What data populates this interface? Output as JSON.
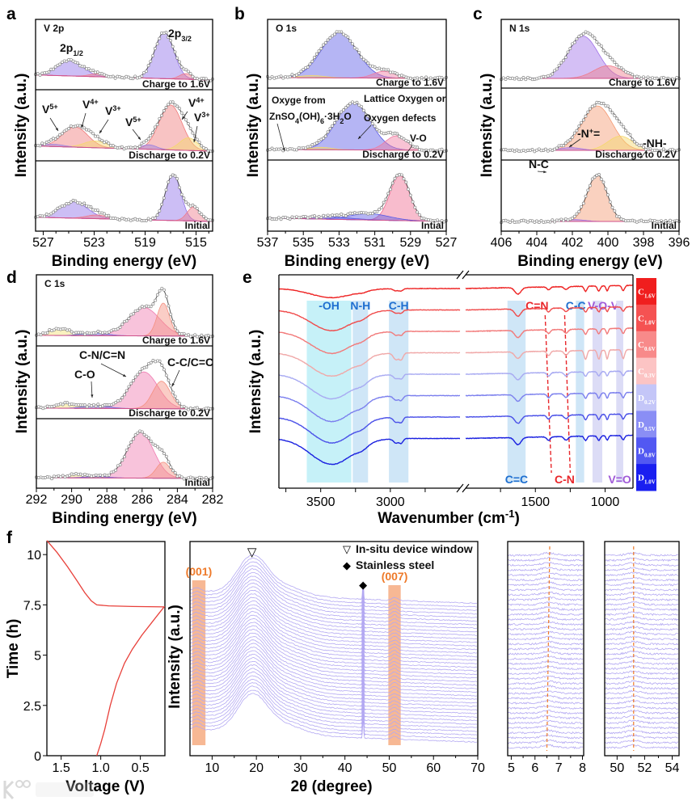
{
  "watermark": "大数跨境",
  "chart_data": [
    {
      "panel": "a",
      "type": "line",
      "title": "V 2p",
      "xlabel": "Binding energy (eV)",
      "ylabel": "Intensity (a.u.)",
      "xlim": [
        513.7,
        527.6
      ],
      "xticks": [
        "527",
        "523",
        "519",
        "515"
      ],
      "spectra": [
        {
          "label": "Charge to 1.6V",
          "bg": [
            0.12,
            0.0
          ],
          "components": [
            {
              "center": 517.5,
              "amp": 1.0,
              "width": 0.75,
              "color": "#8f6fe8"
            },
            {
              "center": 524.9,
              "amp": 0.33,
              "width": 1.0,
              "color": "#8f6fe8"
            },
            {
              "center": 522.8,
              "amp": 0.06,
              "width": 0.6,
              "color": "#f07a8a"
            },
            {
              "center": 515.8,
              "amp": 0.12,
              "width": 0.5,
              "color": "#f07a8a"
            }
          ]
        },
        {
          "label": "Discharge to 0.2V",
          "bg": [
            0.12,
            0.0
          ],
          "components": [
            {
              "center": 517.0,
              "amp": 1.0,
              "width": 0.9,
              "color": "#f07a7a"
            },
            {
              "center": 515.6,
              "amp": 0.28,
              "width": 0.7,
              "color": "#f5d86a"
            },
            {
              "center": 518.7,
              "amp": 0.1,
              "width": 0.6,
              "color": "#9a7fe0"
            },
            {
              "center": 524.5,
              "amp": 0.45,
              "width": 1.0,
              "color": "#f07a7a"
            },
            {
              "center": 522.9,
              "amp": 0.15,
              "width": 0.9,
              "color": "#f5d86a"
            },
            {
              "center": 526.2,
              "amp": 0.05,
              "width": 0.8,
              "color": "#9a7fe0"
            }
          ]
        },
        {
          "label": "Initial",
          "bg": [
            0.1,
            0.0
          ],
          "components": [
            {
              "center": 516.8,
              "amp": 1.0,
              "width": 0.6,
              "color": "#8f6fe8"
            },
            {
              "center": 515.2,
              "amp": 0.3,
              "width": 0.5,
              "color": "#f07a8a"
            },
            {
              "center": 524.6,
              "amp": 0.35,
              "width": 1.1,
              "color": "#8f6fe8"
            },
            {
              "center": 522.8,
              "amp": 0.08,
              "width": 0.8,
              "color": "#f07a8a"
            }
          ]
        }
      ],
      "annotations": [
        {
          "t": "2p",
          "sub": "1/2"
        },
        {
          "t": "2p",
          "sub": "3/2"
        },
        {
          "t": "V",
          "sup": "5+"
        },
        {
          "t": "V",
          "sup": "4+"
        },
        {
          "t": "V",
          "sup": "3+"
        },
        {
          "t": "V",
          "sup": "5+"
        },
        {
          "t": "V",
          "sup": "4+"
        },
        {
          "t": "V",
          "sup": "3+"
        }
      ]
    },
    {
      "panel": "b",
      "type": "line",
      "title": "O 1s",
      "xlabel": "Binding energy (eV)",
      "ylabel": "Intensity (a.u.)",
      "xlim": [
        527,
        537
      ],
      "xticks": [
        "537",
        "535",
        "533",
        "531",
        "529",
        "527"
      ],
      "spectra": [
        {
          "label": "Charge to 1.6V",
          "bg": [
            0.02,
            0.0
          ],
          "components": [
            {
              "center": 533.0,
              "amp": 1.0,
              "width": 1.0,
              "color": "#5a5ae6"
            },
            {
              "center": 530.5,
              "amp": 0.15,
              "width": 0.6,
              "color": "#f07aa0"
            },
            {
              "center": 534.5,
              "amp": 0.05,
              "width": 0.7,
              "color": "#f5d86a"
            }
          ]
        },
        {
          "label": "Discharge to 0.2V",
          "bg": [
            0.02,
            0.0
          ],
          "components": [
            {
              "center": 532.2,
              "amp": 1.0,
              "width": 0.95,
              "color": "#5a5ae6"
            },
            {
              "center": 529.8,
              "amp": 0.3,
              "width": 0.6,
              "color": "#f07aa0"
            },
            {
              "center": 534.0,
              "amp": 0.05,
              "width": 0.6,
              "color": "#f5d86a"
            }
          ]
        },
        {
          "label": "Intial",
          "bg": [
            0.08,
            0.0
          ],
          "components": [
            {
              "center": 529.6,
              "amp": 1.0,
              "width": 0.55,
              "color": "#f06a90"
            },
            {
              "center": 531.3,
              "amp": 0.14,
              "width": 1.1,
              "color": "#5a5ae6"
            },
            {
              "center": 533.5,
              "amp": 0.05,
              "width": 1.2,
              "color": "#5a5ae6"
            }
          ]
        }
      ],
      "annotations": [
        {
          "t": "Oxyge from"
        },
        {
          "t": "ZnSO",
          "s1": "4",
          "t2": "(OH)",
          "s2": "6",
          "t3": "·3H",
          "s3": "2",
          "t4": "O"
        },
        {
          "t": "Lattice Oxygen or"
        },
        {
          "t": "Oxygen defects"
        },
        {
          "t": "V-O"
        }
      ]
    },
    {
      "panel": "c",
      "type": "line",
      "title": "N 1s",
      "xlabel": "Binding energy (eV)",
      "ylabel": "Intensity (a.u.)",
      "xlim": [
        396,
        406
      ],
      "xticks": [
        "406",
        "404",
        "402",
        "400",
        "398",
        "396"
      ],
      "spectra": [
        {
          "label": "Charge to 1.6V",
          "bg": [
            0.0,
            0.0
          ],
          "components": [
            {
              "center": 401.4,
              "amp": 1.0,
              "width": 0.85,
              "color": "#a070e8"
            },
            {
              "center": 400.0,
              "amp": 0.3,
              "width": 0.8,
              "color": "#f07a8a"
            }
          ]
        },
        {
          "label": "Discharge to 0.2V",
          "bg": [
            0.0,
            0.0
          ],
          "components": [
            {
              "center": 400.6,
              "amp": 1.0,
              "width": 0.85,
              "color": "#f59870"
            },
            {
              "center": 399.3,
              "amp": 0.32,
              "width": 0.7,
              "color": "#f5d86a"
            },
            {
              "center": 402.1,
              "amp": 0.06,
              "width": 0.6,
              "color": "#a070e8"
            }
          ]
        },
        {
          "label": "Initial",
          "bg": [
            0.0,
            0.0
          ],
          "components": [
            {
              "center": 400.6,
              "amp": 1.0,
              "width": 0.55,
              "color": "#f59870"
            },
            {
              "center": 401.9,
              "amp": 0.04,
              "width": 0.6,
              "color": "#a070e8"
            }
          ]
        }
      ],
      "annotations": [
        {
          "t": "N-C"
        },
        {
          "t": "-N",
          "sup": "+",
          "t2": "="
        },
        {
          "t": "-NH-"
        }
      ]
    },
    {
      "panel": "d",
      "type": "line",
      "title": "C 1s",
      "xlabel": "Binding energy (eV)",
      "ylabel": "Intensity (a.u.)",
      "xlim": [
        282,
        292
      ],
      "xticks": [
        "292",
        "290",
        "288",
        "286",
        "284",
        "282"
      ],
      "spectra": [
        {
          "label": "Charge to 1.6V",
          "bg": [
            0.02,
            0.0
          ],
          "components": [
            {
              "center": 285.9,
              "amp": 0.62,
              "width": 0.9,
              "color": "#f07ab0"
            },
            {
              "center": 284.8,
              "amp": 0.72,
              "width": 0.35,
              "color": "#f59080"
            },
            {
              "center": 290.7,
              "amp": 0.15,
              "width": 0.6,
              "color": "#f5e070"
            },
            {
              "center": 288.7,
              "amp": 0.06,
              "width": 0.7,
              "color": "#6a6ae8"
            }
          ]
        },
        {
          "label": "Discharge to 0.2V",
          "bg": [
            0.02,
            0.0
          ],
          "components": [
            {
              "center": 285.9,
              "amp": 0.8,
              "width": 0.8,
              "color": "#f07ab0"
            },
            {
              "center": 284.9,
              "amp": 0.6,
              "width": 0.5,
              "color": "#f59080"
            },
            {
              "center": 290.4,
              "amp": 0.1,
              "width": 0.6,
              "color": "#f5e070"
            },
            {
              "center": 288.6,
              "amp": 0.06,
              "width": 0.7,
              "color": "#6a6ae8"
            }
          ]
        },
        {
          "label": "Initial",
          "bg": [
            0.02,
            0.0
          ],
          "components": [
            {
              "center": 286.1,
              "amp": 1.0,
              "width": 0.75,
              "color": "#f07ab0"
            },
            {
              "center": 284.8,
              "amp": 0.35,
              "width": 0.4,
              "color": "#f59080"
            },
            {
              "center": 289.7,
              "amp": 0.07,
              "width": 0.6,
              "color": "#f5e070"
            },
            {
              "center": 288.6,
              "amp": 0.03,
              "width": 0.7,
              "color": "#6a6ae8"
            }
          ]
        }
      ],
      "annotations": [
        {
          "t": "C-N/C=N"
        },
        {
          "t": "C-O"
        },
        {
          "t": "C-C/C=C"
        }
      ]
    },
    {
      "panel": "e",
      "type": "line",
      "xlabel": "Wavenumber (cm",
      "xlabel_sup": "-1",
      "xlabel_end": ")",
      "ylabel": "Intensity (a.u.)",
      "xlim_left": [
        2500,
        3800
      ],
      "xlim_right": [
        800,
        2000
      ],
      "xticks": [
        "3500",
        "3000",
        "1500",
        "1000"
      ],
      "bands": [
        {
          "label": "-OH",
          "range": [
            3280,
            3600
          ],
          "color": "#c6f1f8",
          "text_color": "#1f6fd0"
        },
        {
          "label": "N-H",
          "range": [
            3160,
            3270
          ],
          "color": "#cfe6f7",
          "text_color": "#1f6fd0"
        },
        {
          "label": "C-H",
          "range": [
            2870,
            3010
          ],
          "color": "#cfe6f7",
          "text_color": "#1f6fd0"
        },
        {
          "label": "C=C",
          "range": [
            1570,
            1700
          ],
          "color": "#cfe6f7",
          "text_color": "#1f6fd0"
        },
        {
          "label": "C-C",
          "range": [
            1150,
            1210
          ],
          "color": "#cfe6f7",
          "text_color": "#1f6fd0"
        },
        {
          "label": "V-O-V",
          "range": [
            1020,
            1090
          ],
          "color": "#dcdcf6",
          "text_color": "#a05ad8"
        },
        {
          "label": "V=O",
          "range": [
            870,
            920
          ],
          "color": "#dcdcf6",
          "text_color": "#a05ad8"
        }
      ],
      "lines": [
        {
          "label": "C=N",
          "from": 1430,
          "to": 1385,
          "color": "#e8262a"
        },
        {
          "label": "C-N",
          "from": 1290,
          "to": 1250,
          "color": "#e8262a"
        }
      ],
      "features": [
        {
          "center": 3420,
          "width": 150,
          "key": "oh"
        },
        {
          "center": 3200,
          "width": 40,
          "key": "nh"
        },
        {
          "center": 2960,
          "width": 18,
          "key": "ch"
        },
        {
          "center": 2922,
          "width": 14,
          "key": "ch"
        },
        {
          "center": 1625,
          "width": 22,
          "key": "cc"
        },
        {
          "center": 1405,
          "width": 12,
          "key": "cn"
        },
        {
          "center": 1280,
          "width": 14,
          "key": "cn"
        },
        {
          "center": 1140,
          "width": 10,
          "key": "vo"
        },
        {
          "center": 1045,
          "width": 10,
          "key": "vo"
        },
        {
          "center": 985,
          "width": 8,
          "key": "vo"
        },
        {
          "center": 870,
          "width": 10,
          "key": "vo"
        }
      ],
      "series": [
        {
          "name": "C",
          "sub": "1.6V",
          "color": "#ee2222",
          "bar": "#f01e1e",
          "oh": 0.35,
          "nh": 0.1,
          "ch": 0.15,
          "cc": 0.45,
          "cn": 0.2,
          "vo": 0.35
        },
        {
          "name": "C",
          "sub": "1.0V",
          "color": "#f04c4c",
          "bar": "#f55252",
          "oh": 0.8,
          "nh": 0.2,
          "ch": 0.2,
          "cc": 0.5,
          "cn": 0.25,
          "vo": 0.3
        },
        {
          "name": "C",
          "sub": "0.6V",
          "color": "#f27a7a",
          "bar": "#f88a8a",
          "oh": 0.85,
          "nh": 0.2,
          "ch": 0.25,
          "cc": 0.5,
          "cn": 0.25,
          "vo": 0.35
        },
        {
          "name": "C",
          "sub": "0.3V",
          "color": "#f0a8a8",
          "bar": "#fcc4c4",
          "oh": 0.9,
          "nh": 0.25,
          "ch": 0.45,
          "cc": 0.45,
          "cn": 0.3,
          "vo": 0.6
        },
        {
          "name": "D",
          "sub": "0.2V",
          "color": "#a8aaf2",
          "bar": "#c4c6f8",
          "oh": 0.95,
          "nh": 0.25,
          "ch": 0.3,
          "cc": 0.45,
          "cn": 0.25,
          "vo": 0.3
        },
        {
          "name": "D",
          "sub": "0.5V",
          "color": "#7c80ee",
          "bar": "#8a8ef5",
          "oh": 1.0,
          "nh": 0.25,
          "ch": 0.3,
          "cc": 0.45,
          "cn": 0.25,
          "vo": 0.35
        },
        {
          "name": "D",
          "sub": "0.8V",
          "color": "#4a50e8",
          "bar": "#5258f2",
          "oh": 1.0,
          "nh": 0.25,
          "ch": 0.35,
          "cc": 0.5,
          "cn": 0.25,
          "vo": 0.35
        },
        {
          "name": "D",
          "sub": "1.0V",
          "color": "#1a20e0",
          "bar": "#1a1ff0",
          "oh": 1.0,
          "nh": 0.25,
          "ch": 0.3,
          "cc": 0.5,
          "cn": 0.25,
          "vo": 0.3
        }
      ]
    },
    {
      "panel": "f-voltage",
      "type": "line",
      "xlabel": "Voltage (V)",
      "ylabel": "Time (h)",
      "xlim": [
        1.68,
        0.19
      ],
      "ylim": [
        0,
        10.65
      ],
      "xticks": [
        "1.5",
        "1.0",
        "0.5"
      ],
      "yticks": [
        "0",
        "2.5",
        "5",
        "7.5",
        "10"
      ],
      "color": "#e8403a",
      "points": [
        [
          1.05,
          0
        ],
        [
          1.0,
          0.6
        ],
        [
          0.95,
          1.3
        ],
        [
          0.88,
          2.5
        ],
        [
          0.8,
          3.6
        ],
        [
          0.7,
          4.6
        ],
        [
          0.6,
          5.3
        ],
        [
          0.48,
          6.0
        ],
        [
          0.36,
          6.6
        ],
        [
          0.26,
          7.1
        ],
        [
          0.2,
          7.4
        ],
        [
          0.6,
          7.42
        ],
        [
          0.9,
          7.45
        ],
        [
          1.05,
          7.5
        ],
        [
          1.12,
          7.7
        ],
        [
          1.2,
          8.1
        ],
        [
          1.3,
          8.7
        ],
        [
          1.42,
          9.4
        ],
        [
          1.55,
          10.1
        ],
        [
          1.68,
          10.7
        ]
      ]
    },
    {
      "panel": "f-xrd",
      "type": "line",
      "xlabel": "2θ (degree)",
      "ylabel": "Intensity (a.u.)",
      "xlim": [
        5,
        70
      ],
      "xticks": [
        "10",
        "20",
        "30",
        "40",
        "50",
        "60",
        "70"
      ],
      "n_scans": 40,
      "color": "#b3a8f2",
      "legend": [
        {
          "symbol": "▽",
          "label": "In-situ device window"
        },
        {
          "symbol": "◆",
          "label": "Stainless steel"
        }
      ],
      "markers": [
        {
          "symbol": "▽",
          "x": 19
        },
        {
          "symbol": "◆",
          "x": 44.1
        }
      ],
      "highlights": [
        {
          "label": "(001)",
          "range": [
            5.5,
            8.5
          ]
        },
        {
          "label": "(007)",
          "range": [
            49.8,
            52.6
          ]
        }
      ],
      "highlight_color": "#f4a070",
      "peaks": [
        {
          "center": 19,
          "height": 45,
          "width": 3.3
        },
        {
          "center": 26,
          "height": 12,
          "width": 4.5
        },
        {
          "center": 6.6,
          "height": 4,
          "width": 0.8
        },
        {
          "center": 44.1,
          "height": 22,
          "width": 0.12
        },
        {
          "center": 51.2,
          "height": 4,
          "width": 0.6
        }
      ]
    },
    {
      "panel": "f-inset-001",
      "type": "line",
      "xlim": [
        4.85,
        8.05
      ],
      "xticks": [
        "5",
        "6",
        "7",
        "8"
      ],
      "peak_position": [
        6.62,
        6.5
      ],
      "n_scans": 40
    },
    {
      "panel": "f-inset-007",
      "type": "line",
      "xlim": [
        49.1,
        54.5
      ],
      "xticks": [
        "50",
        "52",
        "54"
      ],
      "peak_position": [
        51.2,
        51.2
      ],
      "n_scans": 40
    }
  ]
}
